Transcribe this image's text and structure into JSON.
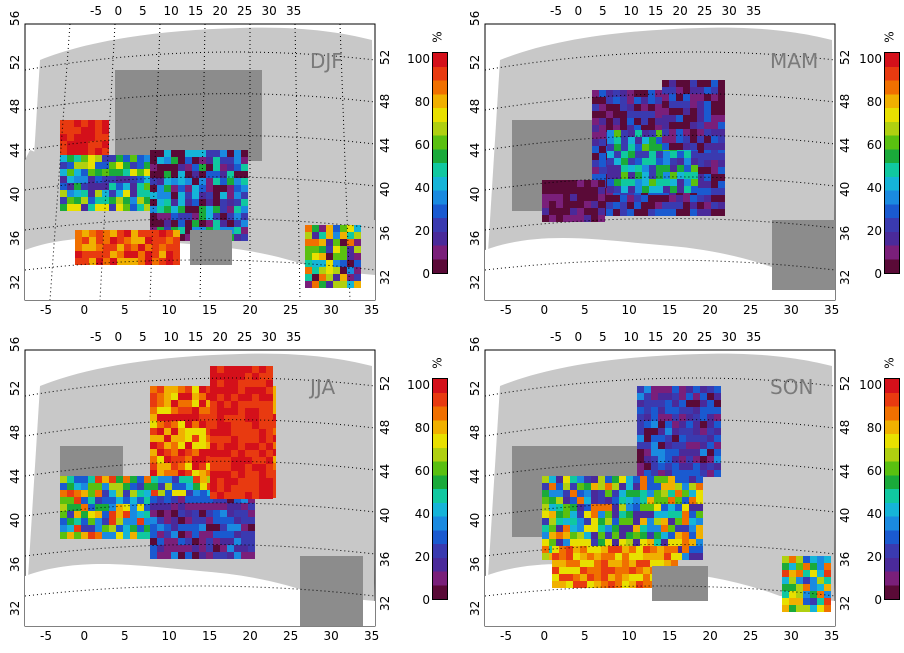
{
  "panels": [
    {
      "season": "DJF"
    },
    {
      "season": "MAM"
    },
    {
      "season": "JJA"
    },
    {
      "season": "SON"
    }
  ],
  "axes": {
    "lon_ticks": [
      "-5",
      "0",
      "5",
      "10",
      "15",
      "20",
      "25",
      "30",
      "35"
    ],
    "lat_ticks": [
      "32",
      "36",
      "40",
      "44",
      "48",
      "52",
      "56"
    ]
  },
  "colorbar": {
    "unit": "%",
    "ticks": [
      "100",
      "80",
      "60",
      "40",
      "20",
      "0"
    ],
    "colors": [
      "#5a0a37",
      "#7a1f7a",
      "#4a2a9a",
      "#3a3ab0",
      "#1a5ad0",
      "#1a8ae0",
      "#15b4d8",
      "#10c8a0",
      "#1aaa3a",
      "#5ac010",
      "#b0d010",
      "#e8e000",
      "#f0b000",
      "#f07000",
      "#e83a10",
      "#d4101a"
    ]
  },
  "colors": {
    "land": "#c8c8c8",
    "ocean": "#ffffff",
    "nodata_grid": "#8c8c8c",
    "borders": "#ffffff"
  }
}
